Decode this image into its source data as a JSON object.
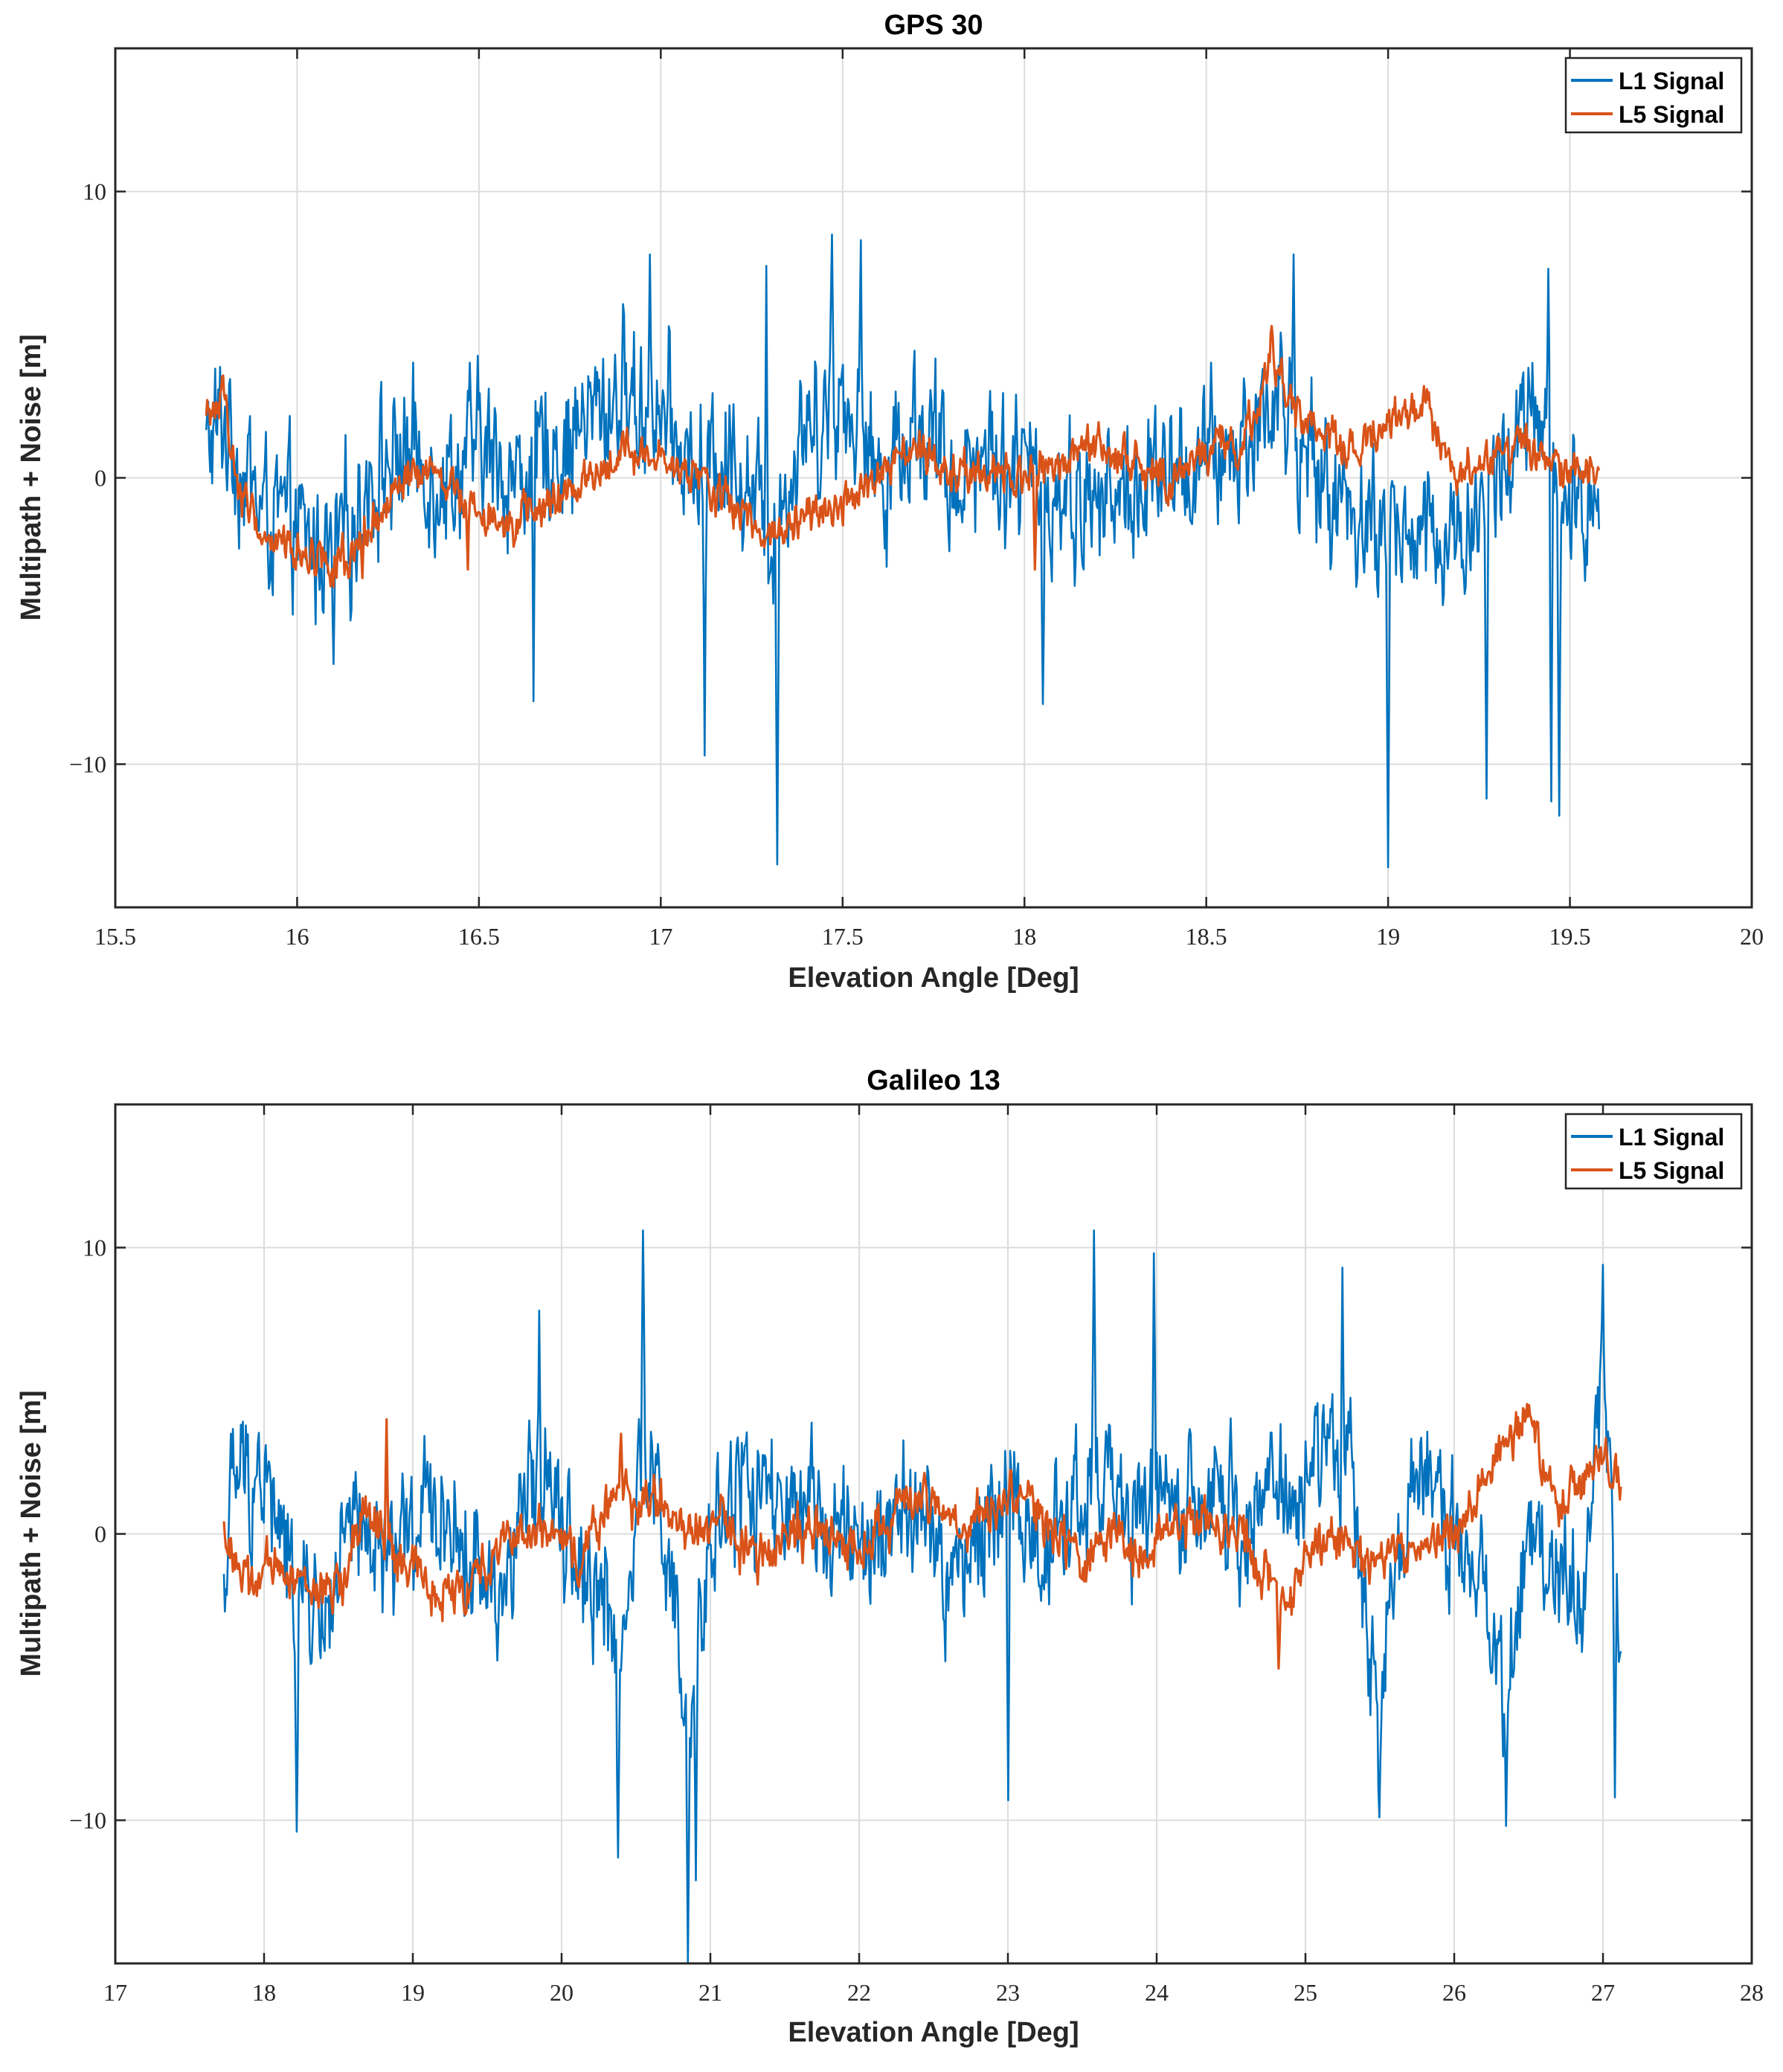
{
  "chart_data": [
    {
      "type": "line",
      "title": "GPS 30",
      "xlabel": "Elevation Angle [Deg]",
      "ylabel": "Multipath + Noise [m]",
      "xlim": [
        15.5,
        20
      ],
      "ylim": [
        -15,
        15
      ],
      "xticks": [
        15.5,
        16,
        16.5,
        17,
        17.5,
        18,
        18.5,
        19,
        19.5,
        20
      ],
      "xtick_labels": [
        "15.5",
        "16",
        "16.5",
        "17",
        "17.5",
        "18",
        "18.5",
        "19",
        "19.5",
        "20"
      ],
      "yticks": [
        -10,
        0,
        10
      ],
      "ytick_labels": [
        "−10",
        "0",
        "10"
      ],
      "grid": true,
      "legend_position": "top-right",
      "x_start": 15.75,
      "x_end": 19.58,
      "series": [
        {
          "name": "L1 Signal",
          "color": "#0072BD",
          "anchors": [
            [
              15.75,
              1
            ],
            [
              15.8,
              2
            ],
            [
              15.9,
              -1
            ],
            [
              16.0,
              -2
            ],
            [
              16.1,
              -3
            ],
            [
              16.2,
              0
            ],
            [
              16.3,
              1
            ],
            [
              16.4,
              0
            ],
            [
              16.5,
              1
            ],
            [
              16.6,
              0
            ],
            [
              16.7,
              1
            ],
            [
              16.8,
              2
            ],
            [
              16.9,
              3
            ],
            [
              17.0,
              2
            ],
            [
              17.1,
              0
            ],
            [
              17.2,
              1
            ],
            [
              17.3,
              -2
            ],
            [
              17.4,
              2
            ],
            [
              17.5,
              3
            ],
            [
              17.6,
              0
            ],
            [
              17.7,
              2
            ],
            [
              17.8,
              0
            ],
            [
              17.9,
              1
            ],
            [
              18.0,
              0
            ],
            [
              18.2,
              -1
            ],
            [
              18.4,
              0
            ],
            [
              18.6,
              1
            ],
            [
              18.7,
              3
            ],
            [
              18.8,
              0
            ],
            [
              18.9,
              -1
            ],
            [
              19.0,
              -2
            ],
            [
              19.2,
              -2
            ],
            [
              19.3,
              0
            ],
            [
              19.4,
              2
            ],
            [
              19.5,
              -2
            ],
            [
              19.58,
              0
            ]
          ],
          "noise_amp": 3.8,
          "spikes": [
            [
              17.32,
              -13.5
            ],
            [
              19.0,
              -13.6
            ],
            [
              17.12,
              -9.7
            ],
            [
              18.05,
              -7.9
            ],
            [
              19.27,
              -11.2
            ],
            [
              19.47,
              -11.8
            ],
            [
              19.45,
              -11.3
            ],
            [
              16.65,
              -7.8
            ],
            [
              16.1,
              -6.5
            ],
            [
              17.47,
              8.5
            ],
            [
              17.55,
              8.3
            ],
            [
              16.97,
              7.8
            ],
            [
              18.74,
              7.8
            ],
            [
              19.44,
              7.3
            ],
            [
              17.29,
              7.4
            ]
          ]
        },
        {
          "name": "L5 Signal",
          "color": "#D95319",
          "anchors": [
            [
              15.75,
              2
            ],
            [
              15.8,
              3
            ],
            [
              15.83,
              0
            ],
            [
              15.9,
              -2
            ],
            [
              16.0,
              -2.5
            ],
            [
              16.15,
              -3
            ],
            [
              16.3,
              0
            ],
            [
              16.4,
              0
            ],
            [
              16.5,
              -1
            ],
            [
              16.6,
              -1.5
            ],
            [
              16.7,
              -1
            ],
            [
              16.8,
              0
            ],
            [
              16.9,
              1
            ],
            [
              17.0,
              0.5
            ],
            [
              17.1,
              0
            ],
            [
              17.2,
              -1
            ],
            [
              17.3,
              -2
            ],
            [
              17.4,
              -1
            ],
            [
              17.5,
              -1
            ],
            [
              17.6,
              0
            ],
            [
              17.7,
              1
            ],
            [
              17.8,
              0
            ],
            [
              17.9,
              0
            ],
            [
              18.0,
              0
            ],
            [
              18.2,
              1
            ],
            [
              18.4,
              0
            ],
            [
              18.5,
              1
            ],
            [
              18.6,
              1
            ],
            [
              18.68,
              4.5
            ],
            [
              18.75,
              2
            ],
            [
              18.9,
              1
            ],
            [
              19.0,
              2
            ],
            [
              19.1,
              2.5
            ],
            [
              19.2,
              0
            ],
            [
              19.3,
              1
            ],
            [
              19.4,
              1
            ],
            [
              19.5,
              0
            ],
            [
              19.58,
              0.5
            ]
          ],
          "noise_amp": 1.1,
          "spikes": [
            [
              18.68,
              5.3
            ],
            [
              16.18,
              -3.5
            ],
            [
              16.47,
              -3.2
            ],
            [
              18.03,
              -3.2
            ]
          ]
        }
      ]
    },
    {
      "type": "line",
      "title": "Galileo 13",
      "xlabel": "Elevation Angle [Deg]",
      "ylabel": "Multipath + Noise [m]",
      "xlim": [
        17,
        28
      ],
      "ylim": [
        -15,
        15
      ],
      "xticks": [
        17,
        18,
        19,
        20,
        21,
        22,
        23,
        24,
        25,
        26,
        27,
        28
      ],
      "xtick_labels": [
        "17",
        "18",
        "19",
        "20",
        "21",
        "22",
        "23",
        "24",
        "25",
        "26",
        "27",
        "28"
      ],
      "yticks": [
        -10,
        0,
        10
      ],
      "ytick_labels": [
        "−10",
        "0",
        "10"
      ],
      "grid": true,
      "legend_position": "top-right",
      "x_start": 17.73,
      "x_end": 27.12,
      "series": [
        {
          "name": "L1 Signal",
          "color": "#0072BD",
          "anchors": [
            [
              17.73,
              -2
            ],
            [
              17.8,
              2
            ],
            [
              18.0,
              2
            ],
            [
              18.2,
              -2
            ],
            [
              18.4,
              -3
            ],
            [
              18.6,
              0
            ],
            [
              18.8,
              -1
            ],
            [
              19.0,
              0
            ],
            [
              19.2,
              1
            ],
            [
              19.4,
              -1
            ],
            [
              19.6,
              -2
            ],
            [
              19.9,
              3
            ],
            [
              20.1,
              -1
            ],
            [
              20.3,
              -2
            ],
            [
              20.4,
              -5
            ],
            [
              20.55,
              3
            ],
            [
              20.7,
              0
            ],
            [
              20.85,
              -8
            ],
            [
              21.0,
              0
            ],
            [
              21.2,
              2
            ],
            [
              21.4,
              1
            ],
            [
              21.6,
              0
            ],
            [
              21.8,
              1
            ],
            [
              22.0,
              -1
            ],
            [
              22.2,
              0
            ],
            [
              22.4,
              1
            ],
            [
              22.6,
              -2
            ],
            [
              22.8,
              0
            ],
            [
              23.0,
              2
            ],
            [
              23.2,
              -1
            ],
            [
              23.4,
              1
            ],
            [
              23.6,
              2
            ],
            [
              23.8,
              0
            ],
            [
              24.0,
              2
            ],
            [
              24.2,
              0
            ],
            [
              24.4,
              1
            ],
            [
              24.6,
              0
            ],
            [
              24.8,
              2
            ],
            [
              25.0,
              1
            ],
            [
              25.2,
              4
            ],
            [
              25.4,
              -2
            ],
            [
              25.5,
              -6
            ],
            [
              25.6,
              0
            ],
            [
              25.8,
              2
            ],
            [
              26.0,
              0
            ],
            [
              26.2,
              -2
            ],
            [
              26.35,
              -6
            ],
            [
              26.5,
              0
            ],
            [
              26.7,
              -1
            ],
            [
              26.85,
              -2
            ],
            [
              27.0,
              5
            ],
            [
              27.1,
              -2
            ],
            [
              27.12,
              -3
            ]
          ],
          "noise_amp": 3.6,
          "spikes": [
            [
              20.85,
              -15.5
            ],
            [
              20.9,
              -12.1
            ],
            [
              20.38,
              -11.3
            ],
            [
              18.22,
              -10.4
            ],
            [
              26.35,
              -10.2
            ],
            [
              25.5,
              -9.9
            ],
            [
              23.0,
              -9.3
            ],
            [
              27.08,
              -9.2
            ],
            [
              20.55,
              10.6
            ],
            [
              23.58,
              10.6
            ],
            [
              23.98,
              9.8
            ],
            [
              27.0,
              9.4
            ],
            [
              25.25,
              9.3
            ],
            [
              19.85,
              7.8
            ]
          ]
        },
        {
          "name": "L5 Signal",
          "color": "#D95319",
          "anchors": [
            [
              17.73,
              0
            ],
            [
              17.9,
              -2
            ],
            [
              18.1,
              -1
            ],
            [
              18.3,
              -2
            ],
            [
              18.5,
              -2
            ],
            [
              18.7,
              1
            ],
            [
              18.9,
              -1
            ],
            [
              19.2,
              -2
            ],
            [
              19.4,
              -2
            ],
            [
              19.6,
              0
            ],
            [
              19.9,
              0
            ],
            [
              20.1,
              -1
            ],
            [
              20.3,
              1
            ],
            [
              20.5,
              1.5
            ],
            [
              20.7,
              1
            ],
            [
              20.9,
              0
            ],
            [
              21.1,
              0.5
            ],
            [
              21.3,
              -1
            ],
            [
              21.5,
              0
            ],
            [
              21.7,
              0
            ],
            [
              21.9,
              -0.5
            ],
            [
              22.1,
              0
            ],
            [
              22.3,
              1
            ],
            [
              22.5,
              1
            ],
            [
              22.7,
              0
            ],
            [
              22.9,
              1
            ],
            [
              23.1,
              1.5
            ],
            [
              23.3,
              0
            ],
            [
              23.5,
              -1
            ],
            [
              23.7,
              0
            ],
            [
              23.9,
              -1
            ],
            [
              24.1,
              0.5
            ],
            [
              24.3,
              0.5
            ],
            [
              24.5,
              0
            ],
            [
              24.7,
              -1
            ],
            [
              24.85,
              -3
            ],
            [
              25.0,
              -1
            ],
            [
              25.2,
              0
            ],
            [
              25.4,
              -1
            ],
            [
              25.6,
              -0.5
            ],
            [
              25.8,
              -0.5
            ],
            [
              26.0,
              0
            ],
            [
              26.2,
              2
            ],
            [
              26.5,
              4
            ],
            [
              26.7,
              1
            ],
            [
              26.9,
              2
            ],
            [
              27.0,
              3
            ],
            [
              27.12,
              1.5
            ]
          ],
          "noise_amp": 1.3,
          "spikes": [
            [
              24.82,
              -4.7
            ],
            [
              18.82,
              4.0
            ],
            [
              26.5,
              4.5
            ],
            [
              20.4,
              3.5
            ]
          ]
        }
      ]
    }
  ]
}
